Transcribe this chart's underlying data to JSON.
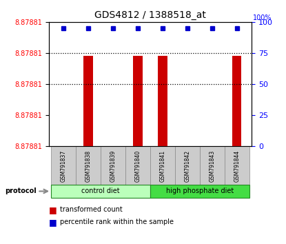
{
  "title": "GDS4812 / 1388518_at",
  "samples": [
    "GSM791837",
    "GSM791838",
    "GSM791839",
    "GSM791840",
    "GSM791841",
    "GSM791842",
    "GSM791843",
    "GSM791844"
  ],
  "bar_heights_visual": [
    0.0,
    0.73,
    0.0,
    0.73,
    0.73,
    0.0,
    0.0,
    0.73
  ],
  "percentile_ranks": [
    95,
    95,
    95,
    95,
    95,
    95,
    95,
    95
  ],
  "bar_color": "#cc0000",
  "percentile_color": "#0000cc",
  "control_diet_color": "#bbffbb",
  "high_phosphate_color": "#44dd44",
  "sample_bg_color": "#cccccc",
  "sample_border_color": "#888888",
  "right_yticks": [
    0,
    25,
    50,
    75,
    100
  ],
  "control_samples": [
    0,
    1,
    2,
    3
  ],
  "high_phosphate_samples": [
    4,
    5,
    6,
    7
  ],
  "legend_red_label": "transformed count",
  "legend_blue_label": "percentile rank within the sample",
  "protocol_label": "protocol",
  "ytick_label": "8.87881",
  "y_min": 8.87875,
  "y_max": 8.87892,
  "n_yticks": 5
}
